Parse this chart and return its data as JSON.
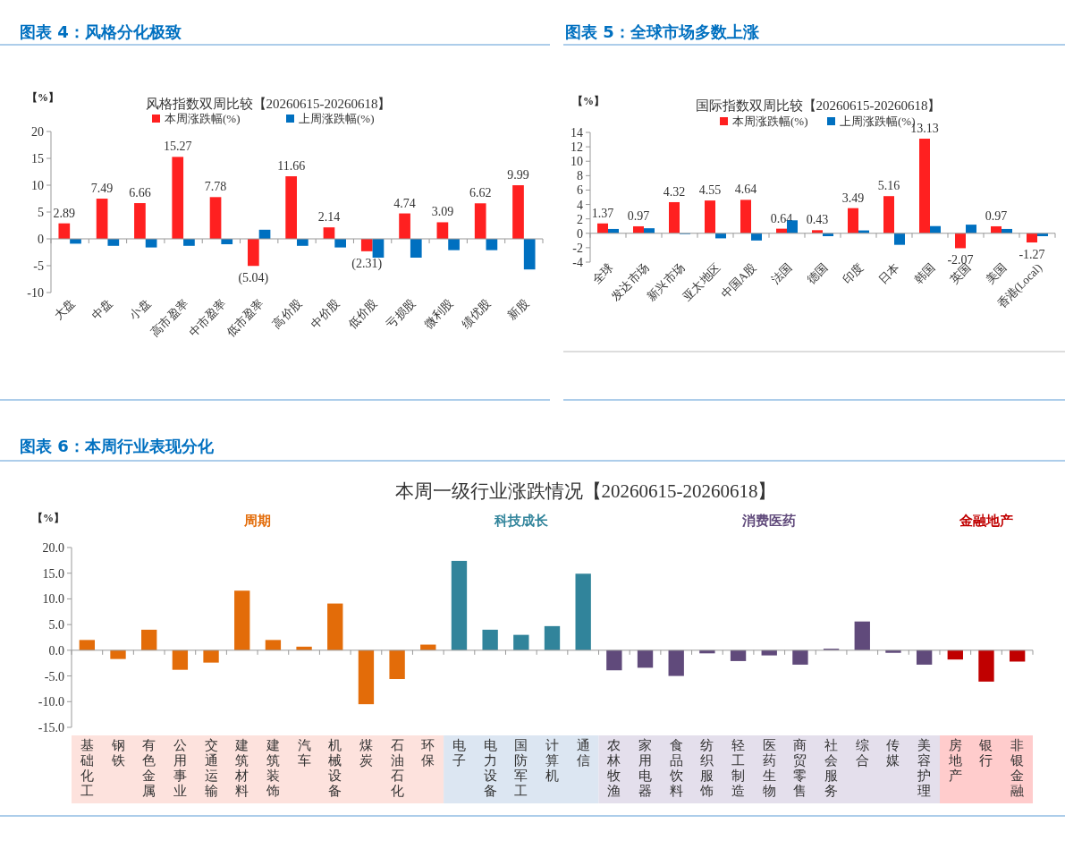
{
  "chart_data": [
    {
      "type": "bar",
      "title": "图表 4：风格分化极致",
      "subtitle": "风格指数双周比较【20260615-20260618】",
      "ylabel": "【%】",
      "legend": "top",
      "categories": [
        "大盘",
        "中盘",
        "小盘",
        "高市盈率",
        "中市盈率",
        "低市盈率",
        "高价股",
        "中价股",
        "低价股",
        "亏损股",
        "微利股",
        "绩优股",
        "新股"
      ],
      "series": [
        {
          "name": "本周涨跌幅(%)",
          "color": "#ff2020",
          "values": [
            2.89,
            7.49,
            6.66,
            15.27,
            7.78,
            -5.04,
            11.66,
            2.14,
            -2.31,
            4.74,
            3.09,
            6.62,
            9.99
          ],
          "value_labels": [
            "2.89",
            "7.49",
            "6.66",
            "15.27",
            "7.78",
            "(5.04)",
            "11.66",
            "2.14",
            "(2.31)",
            "4.74",
            "3.09",
            "6.62",
            "9.99"
          ]
        },
        {
          "name": "上周涨跌幅(%)",
          "color": "#0070c0",
          "values": [
            -0.9,
            -1.3,
            -1.6,
            -1.3,
            -1.0,
            1.7,
            -1.3,
            -1.6,
            -3.5,
            -3.5,
            -2.1,
            -2.1,
            -5.7
          ]
        }
      ],
      "ylim": [
        -10,
        20
      ],
      "yticks": [
        -10,
        -5,
        0,
        5,
        10,
        15,
        20
      ]
    },
    {
      "type": "bar",
      "title": "图表 5：全球市场多数上涨",
      "subtitle": "国际指数双周比较【20260615-20260618】",
      "ylabel": "【%】",
      "legend": "top",
      "categories": [
        "全球",
        "发达市场",
        "新兴市场",
        "亚太地区",
        "中国A股",
        "法国",
        "德国",
        "印度",
        "日本",
        "韩国",
        "英国",
        "美国",
        "香港(Local)"
      ],
      "series": [
        {
          "name": "本周涨跌幅(%)",
          "color": "#ff2020",
          "values": [
            1.37,
            0.97,
            4.32,
            4.55,
            4.64,
            0.64,
            0.43,
            3.49,
            5.16,
            13.13,
            -2.07,
            0.97,
            -1.27
          ],
          "value_labels": [
            "1.37",
            "0.97",
            "4.32",
            "4.55",
            "4.64",
            "0.64",
            "0.43",
            "3.49",
            "5.16",
            "13.13",
            "-2.07",
            "0.97",
            "-1.27"
          ]
        },
        {
          "name": "上周涨跌幅(%)",
          "color": "#0070c0",
          "values": [
            0.6,
            0.7,
            -0.1,
            -0.7,
            -1.0,
            1.8,
            -0.4,
            0.4,
            -1.6,
            1.0,
            1.2,
            0.6,
            -0.4
          ]
        }
      ],
      "ylim": [
        -4,
        14
      ],
      "yticks": [
        -4,
        -2,
        0,
        2,
        4,
        6,
        8,
        10,
        12,
        14
      ]
    },
    {
      "type": "bar",
      "title": "图表 6：本周行业表现分化",
      "subtitle": "本周一级行业涨跌情况【20260615-20260618】",
      "ylabel": "【%】",
      "categories": [
        "基础化工",
        "钢铁",
        "有色金属",
        "公用事业",
        "交通运输",
        "建筑材料",
        "建筑装饰",
        "汽车",
        "机械设备",
        "煤炭",
        "石油石化",
        "环保",
        "电子",
        "电力设备",
        "国防军工",
        "计算机",
        "通信",
        "农林牧渔",
        "家用电器",
        "食品饮料",
        "纺织服饰",
        "轻工制造",
        "医药生物",
        "商贸零售",
        "社会服务",
        "综合",
        "传媒",
        "美容护理",
        "房地产",
        "银行",
        "非银金融"
      ],
      "values": [
        2.0,
        -1.7,
        4.0,
        -3.8,
        -2.4,
        11.6,
        2.0,
        0.7,
        9.1,
        -10.5,
        -5.6,
        1.1,
        17.4,
        4.0,
        3.0,
        4.7,
        14.9,
        -3.9,
        -3.4,
        -5.0,
        -0.6,
        -2.1,
        -1.0,
        -2.8,
        0.3,
        5.6,
        -0.5,
        -2.8,
        -1.8,
        -6.1,
        -2.2
      ],
      "colors": [
        "#e36c09",
        "#e36c09",
        "#e36c09",
        "#e36c09",
        "#e36c09",
        "#e36c09",
        "#e36c09",
        "#e36c09",
        "#e36c09",
        "#e36c09",
        "#e36c09",
        "#e36c09",
        "#31849b",
        "#31849b",
        "#31849b",
        "#31849b",
        "#31849b",
        "#604a7b",
        "#604a7b",
        "#604a7b",
        "#604a7b",
        "#604a7b",
        "#604a7b",
        "#604a7b",
        "#604a7b",
        "#604a7b",
        "#604a7b",
        "#604a7b",
        "#c00000",
        "#c00000",
        "#c00000"
      ],
      "ylim": [
        -15,
        20
      ],
      "yticks": [
        {
          "value": -15,
          "label": "-15.0"
        },
        {
          "value": -10,
          "label": "-10.0"
        },
        {
          "value": -5,
          "label": "-5.0"
        },
        {
          "value": 0,
          "label": "0.0"
        },
        {
          "value": 5,
          "label": "5.0"
        },
        {
          "value": 10,
          "label": "10.0"
        },
        {
          "value": 15,
          "label": "15.0"
        },
        {
          "value": 20,
          "label": "20.0"
        }
      ],
      "annotations": [
        "周期",
        "科技成长",
        "消费医药",
        "金融地产"
      ]
    }
  ]
}
